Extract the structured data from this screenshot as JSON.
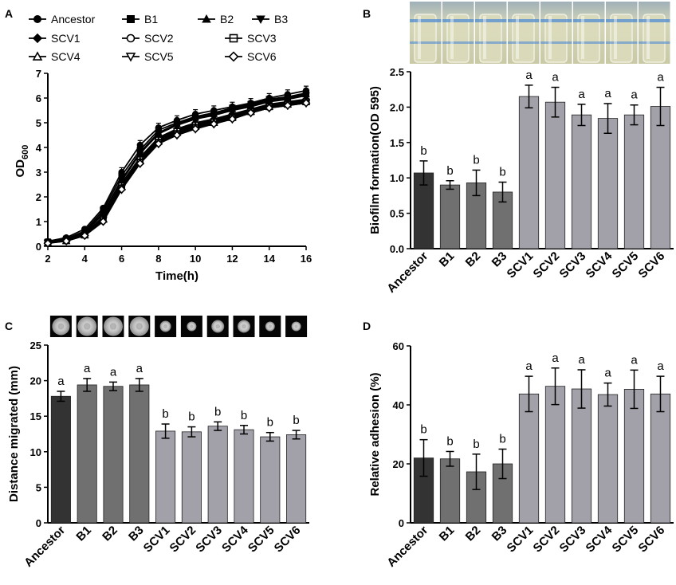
{
  "colors": {
    "ancestor": "#333333",
    "bN": "#707070",
    "scv": "#a2a1a9",
    "line": "#000000"
  },
  "panelA": {
    "label": "A",
    "chart_data": {
      "type": "line",
      "xlabel": "Time(h)",
      "ylabel_main": "OD",
      "ylabel_sub": "600",
      "xlim": [
        2,
        16
      ],
      "ylim": [
        0,
        7
      ],
      "xticks": [
        2,
        4,
        6,
        8,
        10,
        12,
        14,
        16
      ],
      "yticks": [
        0,
        1,
        2,
        3,
        4,
        5,
        6,
        7
      ],
      "x": [
        2,
        3,
        4,
        5,
        6,
        7,
        8,
        9,
        10,
        11,
        12,
        13,
        14,
        15,
        16
      ],
      "series": [
        {
          "name": "Ancestor",
          "marker": "circle",
          "values": [
            0.2,
            0.35,
            0.7,
            1.55,
            3.0,
            4.1,
            4.8,
            5.1,
            5.35,
            5.5,
            5.65,
            5.8,
            6.0,
            6.15,
            6.3
          ]
        },
        {
          "name": "B1",
          "marker": "square",
          "values": [
            0.18,
            0.3,
            0.62,
            1.45,
            2.85,
            3.9,
            4.7,
            5.0,
            5.25,
            5.4,
            5.6,
            5.75,
            5.95,
            6.05,
            6.2
          ]
        },
        {
          "name": "B2",
          "marker": "triangle-up",
          "values": [
            0.17,
            0.28,
            0.58,
            1.35,
            2.7,
            3.8,
            4.6,
            4.95,
            5.2,
            5.35,
            5.55,
            5.7,
            5.9,
            6.0,
            6.15
          ]
        },
        {
          "name": "B3",
          "marker": "triangle-down",
          "values": [
            0.16,
            0.27,
            0.55,
            1.3,
            2.65,
            3.75,
            4.55,
            4.9,
            5.15,
            5.3,
            5.5,
            5.65,
            5.85,
            5.95,
            6.1
          ]
        },
        {
          "name": "SCV1",
          "marker": "diamond",
          "values": [
            0.15,
            0.25,
            0.5,
            1.2,
            2.55,
            3.6,
            4.4,
            4.75,
            5.0,
            5.15,
            5.35,
            5.55,
            5.75,
            5.85,
            5.95
          ]
        },
        {
          "name": "SCV2",
          "marker": "circle-open",
          "values": [
            0.14,
            0.24,
            0.48,
            1.15,
            2.5,
            3.55,
            4.35,
            4.7,
            4.95,
            5.1,
            5.3,
            5.5,
            5.7,
            5.8,
            5.9
          ]
        },
        {
          "name": "SCV3",
          "marker": "square-open",
          "values": [
            0.14,
            0.23,
            0.46,
            1.1,
            2.45,
            3.5,
            4.3,
            4.65,
            4.9,
            5.05,
            5.25,
            5.45,
            5.65,
            5.75,
            5.85
          ]
        },
        {
          "name": "SCV4",
          "marker": "triangle-up-open",
          "values": [
            0.13,
            0.22,
            0.45,
            1.08,
            2.4,
            3.45,
            4.25,
            4.6,
            4.85,
            5.0,
            5.2,
            5.45,
            5.65,
            5.75,
            5.85
          ]
        },
        {
          "name": "SCV5",
          "marker": "triangle-down-open",
          "values": [
            0.13,
            0.22,
            0.44,
            1.05,
            2.35,
            3.4,
            4.2,
            4.55,
            4.8,
            4.95,
            5.2,
            5.4,
            5.6,
            5.7,
            5.8
          ]
        },
        {
          "name": "SCV6",
          "marker": "diamond-open",
          "values": [
            0.12,
            0.21,
            0.43,
            1.0,
            2.3,
            3.35,
            4.15,
            4.5,
            4.75,
            4.95,
            5.15,
            5.4,
            5.6,
            5.7,
            5.8
          ]
        }
      ]
    }
  },
  "panelB": {
    "label": "B",
    "photo_count": 8,
    "chart_data": {
      "type": "bar",
      "ylabel": "Biofilm formation(OD 595)",
      "ylim": [
        0,
        2.5
      ],
      "yticks": [
        "0.0",
        "0.5",
        "1.0",
        "1.5",
        "2.0",
        "2.5"
      ],
      "categories": [
        "Ancestor",
        "B1",
        "B2",
        "B3",
        "SCV1",
        "SCV2",
        "SCV3",
        "SCV4",
        "SCV5",
        "SCV6"
      ],
      "values": [
        1.07,
        0.9,
        0.93,
        0.8,
        2.15,
        2.07,
        1.89,
        1.84,
        1.89,
        2.01
      ],
      "errors": [
        0.17,
        0.06,
        0.18,
        0.14,
        0.16,
        0.21,
        0.15,
        0.21,
        0.14,
        0.27
      ],
      "letters": [
        "b",
        "b",
        "b",
        "b",
        "a",
        "a",
        "a",
        "a",
        "a",
        "a"
      ]
    }
  },
  "panelC": {
    "label": "C",
    "colony_count": 10,
    "chart_data": {
      "type": "bar",
      "ylabel": "Distance migrated (mm)",
      "ylim": [
        0,
        25
      ],
      "yticks": [
        "0",
        "5",
        "10",
        "15",
        "20",
        "25"
      ],
      "categories": [
        "Ancestor",
        "B1",
        "B2",
        "B3",
        "SCV1",
        "SCV2",
        "SCV3",
        "SCV4",
        "SCV5",
        "SCV6"
      ],
      "values": [
        17.8,
        19.4,
        19.2,
        19.4,
        12.9,
        12.8,
        13.6,
        13.1,
        12.1,
        12.4
      ],
      "errors": [
        0.7,
        0.9,
        0.6,
        0.9,
        1.0,
        0.7,
        0.6,
        0.6,
        0.6,
        0.6
      ],
      "letters": [
        "a",
        "a",
        "a",
        "a",
        "b",
        "b",
        "b",
        "b",
        "b",
        "b"
      ]
    }
  },
  "panelD": {
    "label": "D",
    "chart_data": {
      "type": "bar",
      "ylabel": "Relative adhesion (%)",
      "ylim": [
        0,
        60
      ],
      "yticks": [
        "0",
        "20",
        "40",
        "60"
      ],
      "categories": [
        "Ancestor",
        "B1",
        "B2",
        "B3",
        "SCV1",
        "SCV2",
        "SCV3",
        "SCV4",
        "SCV5",
        "SCV6"
      ],
      "values": [
        22.0,
        21.7,
        17.3,
        20.0,
        43.7,
        46.3,
        45.4,
        43.5,
        45.3,
        43.7
      ],
      "errors": [
        6.2,
        2.5,
        6.0,
        5.0,
        6.0,
        6.2,
        6.5,
        3.9,
        6.5,
        6.0
      ],
      "letters": [
        "b",
        "b",
        "b",
        "b",
        "a",
        "a",
        "a",
        "a",
        "a",
        "a"
      ]
    }
  }
}
